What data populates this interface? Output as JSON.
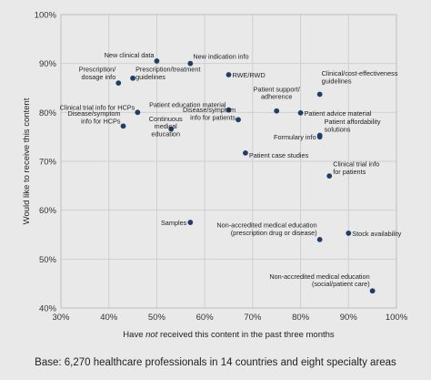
{
  "chart_data": {
    "type": "scatter",
    "xlabel_parts": [
      "Have ",
      "not",
      " received this content in the past three months"
    ],
    "ylabel": "Would like to receive this content",
    "xlim": [
      30,
      100
    ],
    "ylim": [
      40,
      100
    ],
    "xticks": [
      "30%",
      "40%",
      "50%",
      "60%",
      "70%",
      "80%",
      "90%",
      "100%"
    ],
    "yticks": [
      "40%",
      "50%",
      "60%",
      "70%",
      "80%",
      "90%",
      "100%"
    ],
    "grid": true,
    "point_color": "#1f3f66",
    "points": [
      {
        "label": [
          "New clinical data"
        ],
        "x": 50,
        "y": 90.5,
        "anchor": "end",
        "dx": -3,
        "dy": -4
      },
      {
        "label": [
          "New indication info"
        ],
        "x": 57,
        "y": 90,
        "anchor": "start",
        "dx": 3,
        "dy": -5
      },
      {
        "label": [
          "RWE/RWD"
        ],
        "x": 65,
        "y": 87.7,
        "anchor": "start",
        "dx": 4,
        "dy": 3
      },
      {
        "label": [
          "Prescription/",
          "dosage info"
        ],
        "x": 42,
        "y": 86,
        "anchor": "end",
        "dx": -3,
        "dy": -4
      },
      {
        "label": [
          "Prescription/treatment",
          "guidelines"
        ],
        "x": 45,
        "y": 87,
        "anchor": "start",
        "dx": 3,
        "dy": 1
      },
      {
        "label": [
          "Clinical/cost-effectiveness",
          "guidelines"
        ],
        "x": 84,
        "y": 83.7,
        "anchor": "start",
        "dx": 2,
        "dy": -12
      },
      {
        "label": [
          "Patient support/",
          "adherence"
        ],
        "x": 75,
        "y": 80.3,
        "anchor": "middle",
        "dx": 0,
        "dy": -13
      },
      {
        "label": [
          "Clinical trial info for HCPs"
        ],
        "x": 46,
        "y": 80,
        "anchor": "end",
        "dx": -3,
        "dy": -3
      },
      {
        "label": [
          "Patient education material"
        ],
        "x": 65,
        "y": 80.5,
        "anchor": "end",
        "dx": -3,
        "dy": -3
      },
      {
        "label": [
          "Patient advice material"
        ],
        "x": 80,
        "y": 79.9,
        "anchor": "start",
        "dx": 4,
        "dy": 3
      },
      {
        "label": [
          "Disease/symptom",
          "info for HCPs"
        ],
        "x": 43,
        "y": 77.2,
        "anchor": "end",
        "dx": -3,
        "dy": -3
      },
      {
        "label": [
          "Disease/symptom",
          "info for patients"
        ],
        "x": 67,
        "y": 78.5,
        "anchor": "end",
        "dx": -3,
        "dy": 0
      },
      {
        "label": [
          "Continuous",
          "medical",
          "education"
        ],
        "x": 53,
        "y": 76.6,
        "anchor": "middle",
        "dx": -6,
        "dy": 8
      },
      {
        "label": [
          "Formulary info"
        ],
        "x": 84,
        "y": 75,
        "anchor": "end",
        "dx": -4,
        "dy": 3
      },
      {
        "label": [
          "Patient affordability",
          "solutions"
        ],
        "x": 84,
        "y": 75.3,
        "anchor": "start",
        "dx": 5,
        "dy": -4
      },
      {
        "label": [
          "Patient case studies"
        ],
        "x": 68.5,
        "y": 71.7,
        "anchor": "start",
        "dx": 4,
        "dy": 5
      },
      {
        "label": [
          "Clinical trial info",
          "for patients"
        ],
        "x": 86,
        "y": 67,
        "anchor": "start",
        "dx": 4,
        "dy": -2
      },
      {
        "label": [
          "Samples"
        ],
        "x": 57,
        "y": 57.5,
        "anchor": "end",
        "dx": -4,
        "dy": 3
      },
      {
        "label": [
          "Non-accredited medical education",
          "(prescription drug or disease)"
        ],
        "x": 84,
        "y": 54,
        "anchor": "end",
        "dx": -3,
        "dy": -5
      },
      {
        "label": [
          "Stock availability"
        ],
        "x": 90,
        "y": 55.3,
        "anchor": "start",
        "dx": 4,
        "dy": 3
      },
      {
        "label": [
          "Non-accredited medical education",
          "(social/patient care)"
        ],
        "x": 95,
        "y": 43.5,
        "anchor": "end",
        "dx": -3,
        "dy": -5
      }
    ]
  },
  "footer": {
    "base_text": "Base: 6,270 healthcare professionals in 14 countries and eight specialty areas"
  }
}
